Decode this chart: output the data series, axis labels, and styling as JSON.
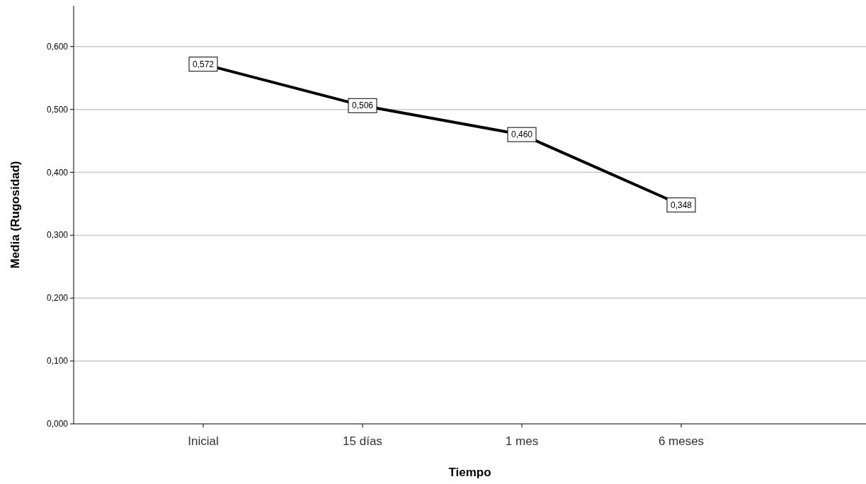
{
  "chart_data": {
    "type": "line",
    "xlabel": "Tiempo",
    "ylabel": "Media (Rugosidad)",
    "categories": [
      "Inicial",
      "15 días",
      "1 mes",
      "6 meses"
    ],
    "series": [
      {
        "color": "#000000",
        "values": [
          0.572,
          0.506,
          0.46,
          0.348
        ],
        "value_labels": [
          "0,572",
          "0,506",
          "0,460",
          "0,348"
        ]
      }
    ],
    "ylim": [
      0,
      0.665
    ],
    "yticks": [
      {
        "value": 0,
        "label": "0,000"
      },
      {
        "value": 0.1,
        "label": "0,100"
      },
      {
        "value": 0.2,
        "label": "0,200"
      },
      {
        "value": 0.3,
        "label": "0,300"
      },
      {
        "value": 0.4,
        "label": "0,400"
      },
      {
        "value": 0.5,
        "label": "0,500"
      },
      {
        "value": 0.6,
        "label": "0,600"
      }
    ],
    "grid": "y",
    "line_style": "solid",
    "marker": "square"
  }
}
